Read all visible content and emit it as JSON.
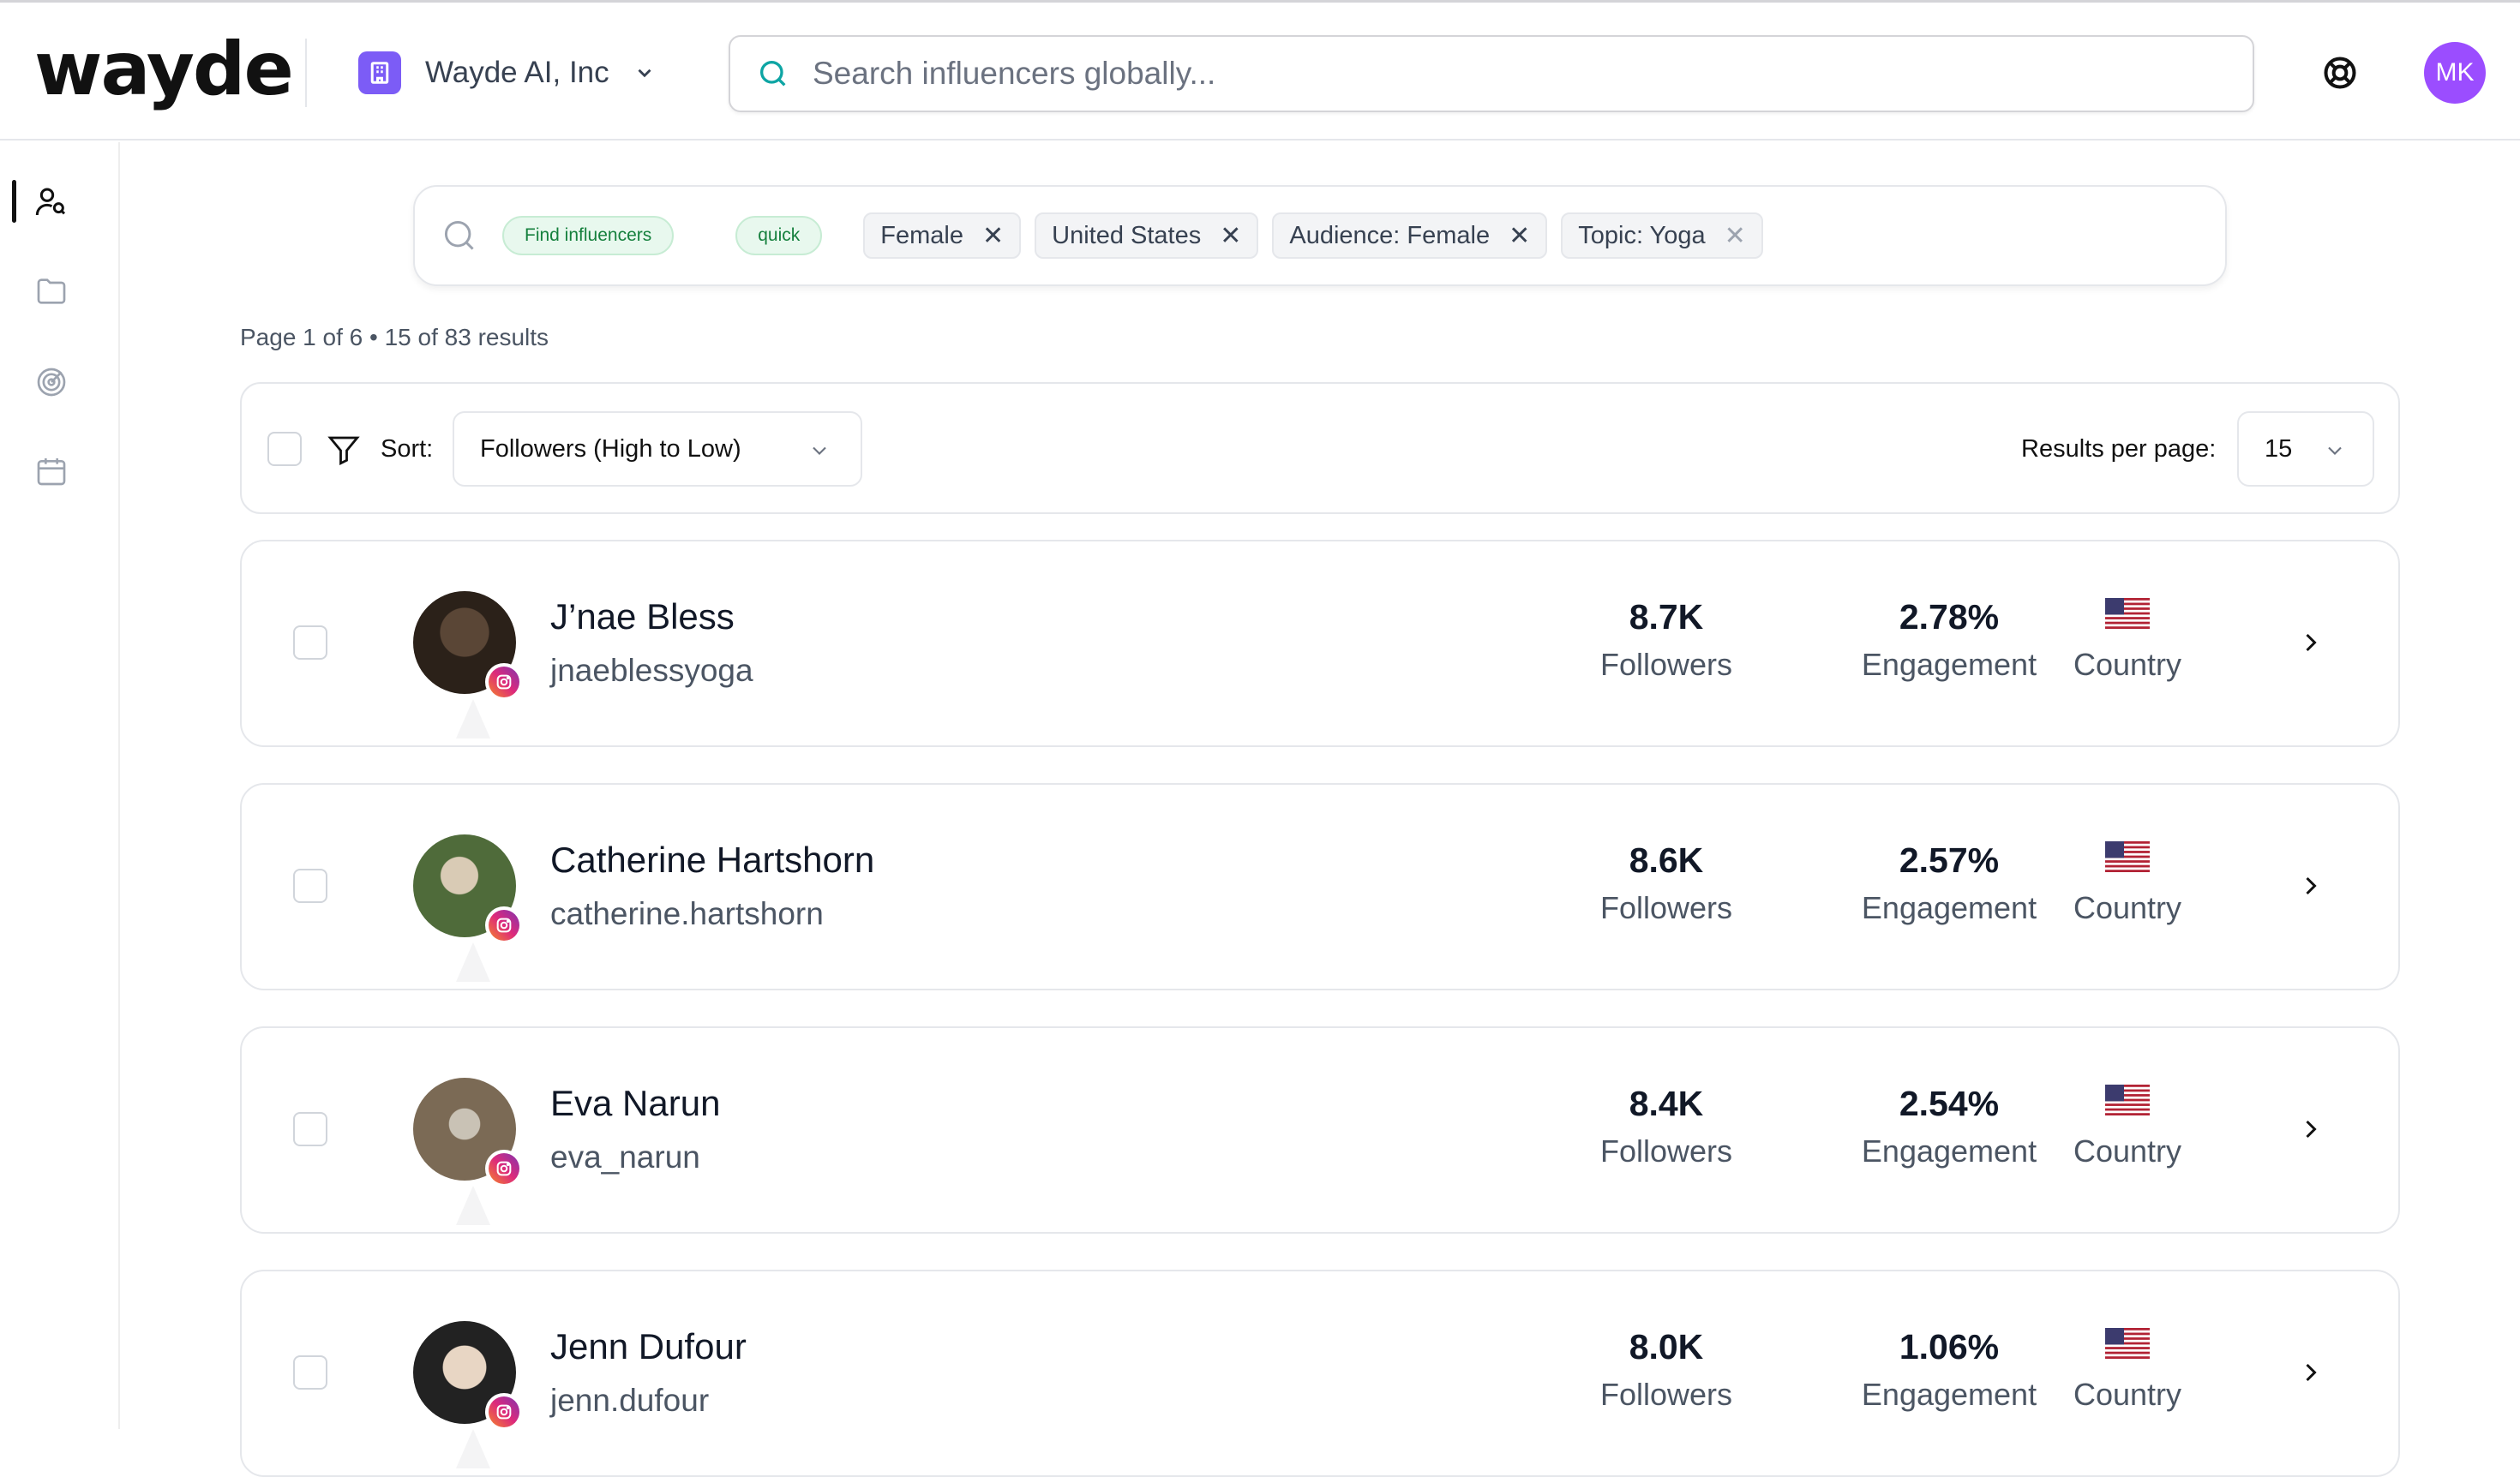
{
  "brand": {
    "logo_text": "wayde",
    "accent": "#7c5cf6"
  },
  "org": {
    "name": "Wayde AI, Inc"
  },
  "search": {
    "placeholder": "Search influencers globally..."
  },
  "user": {
    "initials": "MK",
    "avatar_color": "#9b4dff"
  },
  "query": {
    "mode_pills": [
      "Find influencers",
      "quick"
    ],
    "filters": [
      "Female",
      "United States",
      "Audience: Female",
      "Topic: Yoga"
    ]
  },
  "results": {
    "summary": "Page 1 of 6 • 15 of 83 results"
  },
  "toolbar": {
    "sort_label": "Sort:",
    "sort_value": "Followers (High to Low)",
    "per_page_label": "Results per page:",
    "per_page_value": "15"
  },
  "influencers": [
    {
      "name": "J’nae Bless",
      "handle": "jnaeblessyoga",
      "followers": "8.7K",
      "followers_label": "Followers",
      "engagement": "2.78%",
      "engagement_label": "Engagement",
      "country_label": "Country",
      "platform": "instagram-icon"
    },
    {
      "name": "Catherine Hartshorn",
      "handle": "catherine.hartshorn",
      "followers": "8.6K",
      "followers_label": "Followers",
      "engagement": "2.57%",
      "engagement_label": "Engagement",
      "country_label": "Country",
      "platform": "instagram-icon"
    },
    {
      "name": "Eva Narun",
      "handle": "eva_narun",
      "followers": "8.4K",
      "followers_label": "Followers",
      "engagement": "2.54%",
      "engagement_label": "Engagement",
      "country_label": "Country",
      "platform": "instagram-icon"
    },
    {
      "name": "Jenn Dufour",
      "handle": "jenn.dufour",
      "followers": "8.0K",
      "followers_label": "Followers",
      "engagement": "1.06%",
      "engagement_label": "Engagement",
      "country_label": "Country",
      "platform": "instagram-icon"
    }
  ]
}
